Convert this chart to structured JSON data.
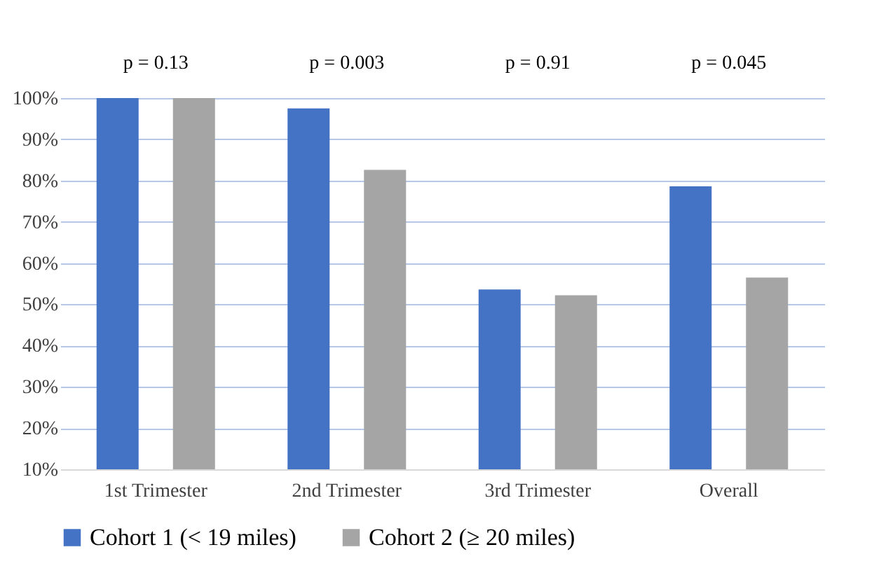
{
  "chart_data": {
    "type": "bar",
    "categories": [
      "1st Trimester",
      "2nd Trimester",
      "3rd Trimester",
      "Overall"
    ],
    "series": [
      {
        "name": "Cohort 1 (< 19 miles)",
        "color": "#4472c4",
        "values": [
          100,
          97.5,
          53.6,
          78.6
        ]
      },
      {
        "name": "Cohort 2 (≥ 20 miles)",
        "color": "#a5a5a5",
        "values": [
          100,
          82.6,
          52.2,
          56.5
        ]
      }
    ],
    "ylim": [
      10,
      100
    ],
    "yticks": [
      {
        "value": 10,
        "label": "10%"
      },
      {
        "value": 20,
        "label": "20%"
      },
      {
        "value": 30,
        "label": "30%"
      },
      {
        "value": 40,
        "label": "40%"
      },
      {
        "value": 50,
        "label": "50%"
      },
      {
        "value": 60,
        "label": "60%"
      },
      {
        "value": 70,
        "label": "70%"
      },
      {
        "value": 80,
        "label": "80%"
      },
      {
        "value": 90,
        "label": "90%"
      },
      {
        "value": 100,
        "label": "100%"
      }
    ],
    "grid": "y",
    "legend": "bottom",
    "annotations": [
      "p = 0.13",
      "p = 0.003",
      "p = 0.91",
      "p = 0.045"
    ]
  }
}
